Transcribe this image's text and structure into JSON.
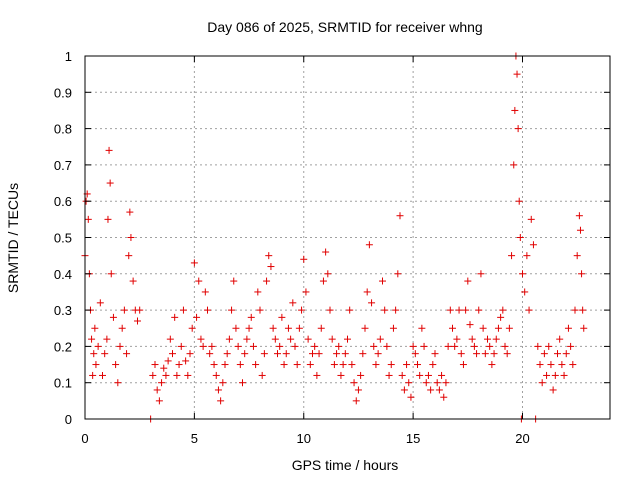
{
  "chart_data": {
    "type": "scatter",
    "title": "Day 086 of 2025, SRMTID for receiver whng",
    "xlabel": "GPS time / hours",
    "ylabel": "SRMTID / TECUs",
    "xlim": [
      0,
      24
    ],
    "ylim": [
      0,
      1
    ],
    "xticks": [
      0,
      5,
      10,
      15,
      20
    ],
    "yticks": [
      0,
      0.1,
      0.2,
      0.3,
      0.4,
      0.5,
      0.6,
      0.7,
      0.8,
      0.9,
      1
    ],
    "grid": true,
    "marker": "+",
    "series_color": "#e00000",
    "series": [
      {
        "name": "SRMTID",
        "points": [
          [
            0.0,
            0.45
          ],
          [
            0.05,
            0.6
          ],
          [
            0.1,
            0.62
          ],
          [
            0.15,
            0.55
          ],
          [
            0.2,
            0.4
          ],
          [
            0.25,
            0.3
          ],
          [
            0.3,
            0.22
          ],
          [
            0.35,
            0.12
          ],
          [
            0.4,
            0.18
          ],
          [
            0.45,
            0.25
          ],
          [
            0.5,
            0.15
          ],
          [
            0.6,
            0.2
          ],
          [
            0.7,
            0.32
          ],
          [
            0.8,
            0.12
          ],
          [
            0.9,
            0.18
          ],
          [
            1.0,
            0.22
          ],
          [
            1.05,
            0.55
          ],
          [
            1.1,
            0.74
          ],
          [
            1.15,
            0.65
          ],
          [
            1.2,
            0.4
          ],
          [
            1.3,
            0.28
          ],
          [
            1.4,
            0.15
          ],
          [
            1.5,
            0.1
          ],
          [
            1.6,
            0.2
          ],
          [
            1.7,
            0.25
          ],
          [
            1.8,
            0.3
          ],
          [
            1.9,
            0.18
          ],
          [
            2.0,
            0.45
          ],
          [
            2.05,
            0.57
          ],
          [
            2.1,
            0.5
          ],
          [
            2.2,
            0.38
          ],
          [
            2.3,
            0.3
          ],
          [
            2.4,
            0.27
          ],
          [
            2.5,
            0.3
          ],
          [
            3.0,
            0.0
          ],
          [
            3.1,
            0.12
          ],
          [
            3.2,
            0.15
          ],
          [
            3.3,
            0.08
          ],
          [
            3.4,
            0.05
          ],
          [
            3.5,
            0.1
          ],
          [
            3.6,
            0.14
          ],
          [
            3.7,
            0.12
          ],
          [
            3.8,
            0.16
          ],
          [
            3.9,
            0.22
          ],
          [
            4.0,
            0.18
          ],
          [
            4.1,
            0.28
          ],
          [
            4.2,
            0.12
          ],
          [
            4.3,
            0.15
          ],
          [
            4.4,
            0.2
          ],
          [
            4.5,
            0.3
          ],
          [
            4.6,
            0.16
          ],
          [
            4.7,
            0.12
          ],
          [
            4.8,
            0.18
          ],
          [
            4.9,
            0.25
          ],
          [
            5.0,
            0.43
          ],
          [
            5.1,
            0.28
          ],
          [
            5.2,
            0.38
          ],
          [
            5.3,
            0.22
          ],
          [
            5.4,
            0.2
          ],
          [
            5.5,
            0.35
          ],
          [
            5.6,
            0.3
          ],
          [
            5.7,
            0.18
          ],
          [
            5.8,
            0.2
          ],
          [
            5.9,
            0.15
          ],
          [
            6.0,
            0.12
          ],
          [
            6.1,
            0.08
          ],
          [
            6.2,
            0.05
          ],
          [
            6.3,
            0.1
          ],
          [
            6.4,
            0.15
          ],
          [
            6.5,
            0.18
          ],
          [
            6.6,
            0.22
          ],
          [
            6.7,
            0.3
          ],
          [
            6.8,
            0.38
          ],
          [
            6.9,
            0.25
          ],
          [
            7.0,
            0.2
          ],
          [
            7.1,
            0.15
          ],
          [
            7.2,
            0.1
          ],
          [
            7.3,
            0.18
          ],
          [
            7.4,
            0.22
          ],
          [
            7.5,
            0.25
          ],
          [
            7.6,
            0.28
          ],
          [
            7.7,
            0.2
          ],
          [
            7.8,
            0.15
          ],
          [
            7.9,
            0.35
          ],
          [
            8.0,
            0.3
          ],
          [
            8.1,
            0.12
          ],
          [
            8.2,
            0.18
          ],
          [
            8.3,
            0.38
          ],
          [
            8.4,
            0.45
          ],
          [
            8.5,
            0.42
          ],
          [
            8.6,
            0.25
          ],
          [
            8.7,
            0.22
          ],
          [
            8.8,
            0.18
          ],
          [
            8.9,
            0.2
          ],
          [
            9.0,
            0.28
          ],
          [
            9.1,
            0.15
          ],
          [
            9.2,
            0.18
          ],
          [
            9.3,
            0.25
          ],
          [
            9.4,
            0.22
          ],
          [
            9.5,
            0.32
          ],
          [
            9.6,
            0.2
          ],
          [
            9.7,
            0.15
          ],
          [
            9.8,
            0.25
          ],
          [
            9.9,
            0.3
          ],
          [
            10.0,
            0.44
          ],
          [
            10.1,
            0.35
          ],
          [
            10.2,
            0.22
          ],
          [
            10.3,
            0.15
          ],
          [
            10.4,
            0.18
          ],
          [
            10.5,
            0.2
          ],
          [
            10.6,
            0.12
          ],
          [
            10.7,
            0.18
          ],
          [
            10.8,
            0.25
          ],
          [
            10.9,
            0.38
          ],
          [
            11.0,
            0.46
          ],
          [
            11.1,
            0.4
          ],
          [
            11.2,
            0.3
          ],
          [
            11.3,
            0.22
          ],
          [
            11.4,
            0.15
          ],
          [
            11.5,
            0.18
          ],
          [
            11.6,
            0.2
          ],
          [
            11.7,
            0.12
          ],
          [
            11.8,
            0.15
          ],
          [
            11.9,
            0.18
          ],
          [
            12.0,
            0.22
          ],
          [
            12.1,
            0.3
          ],
          [
            12.2,
            0.15
          ],
          [
            12.3,
            0.1
          ],
          [
            12.4,
            0.05
          ],
          [
            12.5,
            0.08
          ],
          [
            12.6,
            0.12
          ],
          [
            12.7,
            0.18
          ],
          [
            12.8,
            0.25
          ],
          [
            12.9,
            0.35
          ],
          [
            13.0,
            0.48
          ],
          [
            13.1,
            0.32
          ],
          [
            13.2,
            0.2
          ],
          [
            13.3,
            0.15
          ],
          [
            13.4,
            0.18
          ],
          [
            13.5,
            0.22
          ],
          [
            13.6,
            0.38
          ],
          [
            13.7,
            0.3
          ],
          [
            13.8,
            0.2
          ],
          [
            13.9,
            0.12
          ],
          [
            14.0,
            0.15
          ],
          [
            14.1,
            0.25
          ],
          [
            14.2,
            0.3
          ],
          [
            14.3,
            0.4
          ],
          [
            14.4,
            0.56
          ],
          [
            14.5,
            0.12
          ],
          [
            14.6,
            0.08
          ],
          [
            14.7,
            0.15
          ],
          [
            14.8,
            0.1
          ],
          [
            14.9,
            0.06
          ],
          [
            15.0,
            0.2
          ],
          [
            15.1,
            0.18
          ],
          [
            15.2,
            0.15
          ],
          [
            15.3,
            0.12
          ],
          [
            15.4,
            0.25
          ],
          [
            15.5,
            0.2
          ],
          [
            15.6,
            0.1
          ],
          [
            15.7,
            0.12
          ],
          [
            15.8,
            0.08
          ],
          [
            15.9,
            0.15
          ],
          [
            16.0,
            0.18
          ],
          [
            16.1,
            0.1
          ],
          [
            16.2,
            0.08
          ],
          [
            16.3,
            0.12
          ],
          [
            16.4,
            0.06
          ],
          [
            16.5,
            0.1
          ],
          [
            16.6,
            0.2
          ],
          [
            16.7,
            0.3
          ],
          [
            16.8,
            0.25
          ],
          [
            16.9,
            0.2
          ],
          [
            17.0,
            0.22
          ],
          [
            17.1,
            0.3
          ],
          [
            17.2,
            0.18
          ],
          [
            17.3,
            0.15
          ],
          [
            17.4,
            0.3
          ],
          [
            17.5,
            0.38
          ],
          [
            17.6,
            0.26
          ],
          [
            17.7,
            0.22
          ],
          [
            17.8,
            0.2
          ],
          [
            17.9,
            0.18
          ],
          [
            18.0,
            0.3
          ],
          [
            18.1,
            0.4
          ],
          [
            18.2,
            0.25
          ],
          [
            18.3,
            0.18
          ],
          [
            18.4,
            0.22
          ],
          [
            18.5,
            0.2
          ],
          [
            18.6,
            0.15
          ],
          [
            18.7,
            0.18
          ],
          [
            18.8,
            0.22
          ],
          [
            18.9,
            0.25
          ],
          [
            19.0,
            0.28
          ],
          [
            19.1,
            0.3
          ],
          [
            19.2,
            0.2
          ],
          [
            19.3,
            0.18
          ],
          [
            19.4,
            0.25
          ],
          [
            19.5,
            0.45
          ],
          [
            19.6,
            0.7
          ],
          [
            19.65,
            0.85
          ],
          [
            19.7,
            1.0
          ],
          [
            19.75,
            0.95
          ],
          [
            19.8,
            0.8
          ],
          [
            19.85,
            0.6
          ],
          [
            19.9,
            0.5
          ],
          [
            19.95,
            0.0
          ],
          [
            20.0,
            0.4
          ],
          [
            20.1,
            0.35
          ],
          [
            20.2,
            0.45
          ],
          [
            20.3,
            0.3
          ],
          [
            20.4,
            0.55
          ],
          [
            20.5,
            0.48
          ],
          [
            20.6,
            0.0
          ],
          [
            20.7,
            0.2
          ],
          [
            20.8,
            0.15
          ],
          [
            20.9,
            0.1
          ],
          [
            21.0,
            0.18
          ],
          [
            21.1,
            0.12
          ],
          [
            21.2,
            0.2
          ],
          [
            21.3,
            0.15
          ],
          [
            21.4,
            0.08
          ],
          [
            21.5,
            0.12
          ],
          [
            21.6,
            0.18
          ],
          [
            21.7,
            0.22
          ],
          [
            21.8,
            0.15
          ],
          [
            21.9,
            0.12
          ],
          [
            22.0,
            0.18
          ],
          [
            22.1,
            0.25
          ],
          [
            22.2,
            0.2
          ],
          [
            22.3,
            0.15
          ],
          [
            22.4,
            0.3
          ],
          [
            22.5,
            0.45
          ],
          [
            22.6,
            0.56
          ],
          [
            22.65,
            0.52
          ],
          [
            22.7,
            0.4
          ],
          [
            22.75,
            0.3
          ],
          [
            22.8,
            0.25
          ]
        ]
      }
    ]
  }
}
